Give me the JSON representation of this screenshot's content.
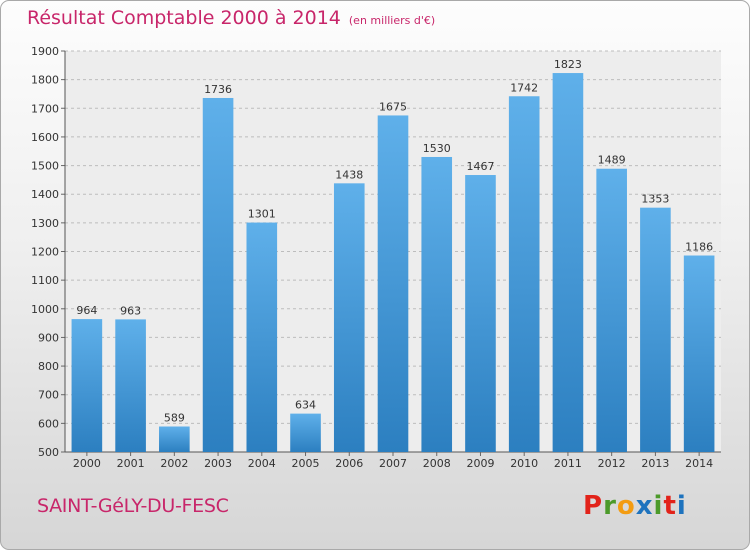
{
  "header": {
    "title": "Résultat Comptable 2000 à 2014",
    "unit": "(en milliers d'€)"
  },
  "footer": {
    "city": "SAINT-GéLY-DU-FESC",
    "brand": [
      "P",
      "r",
      "o",
      "x",
      "i",
      "t",
      "i"
    ],
    "brand_colors": [
      "#e2231a",
      "#4c9a2a",
      "#f39c12",
      "#1e73be",
      "#4c9a2a",
      "#e2231a",
      "#1e73be"
    ]
  },
  "colors": {
    "bar_top": "#5fb0ea",
    "bar_bottom": "#2c7fc0",
    "accent": "#c8266a"
  },
  "chart_data": {
    "type": "bar",
    "title": "Résultat Comptable 2000 à 2014",
    "subtitle": "(en milliers d'€)",
    "xlabel": "",
    "ylabel": "",
    "categories": [
      "2000",
      "2001",
      "2002",
      "2003",
      "2004",
      "2005",
      "2006",
      "2007",
      "2008",
      "2009",
      "2010",
      "2011",
      "2012",
      "2013",
      "2014"
    ],
    "values": [
      964,
      963,
      589,
      1736,
      1301,
      634,
      1438,
      1675,
      1530,
      1467,
      1742,
      1823,
      1489,
      1353,
      1186
    ],
    "ylim": [
      500,
      1900
    ],
    "yticks": [
      500,
      600,
      700,
      800,
      900,
      1000,
      1100,
      1200,
      1300,
      1400,
      1500,
      1600,
      1700,
      1800,
      1900
    ],
    "grid": true,
    "data_labels": true
  }
}
